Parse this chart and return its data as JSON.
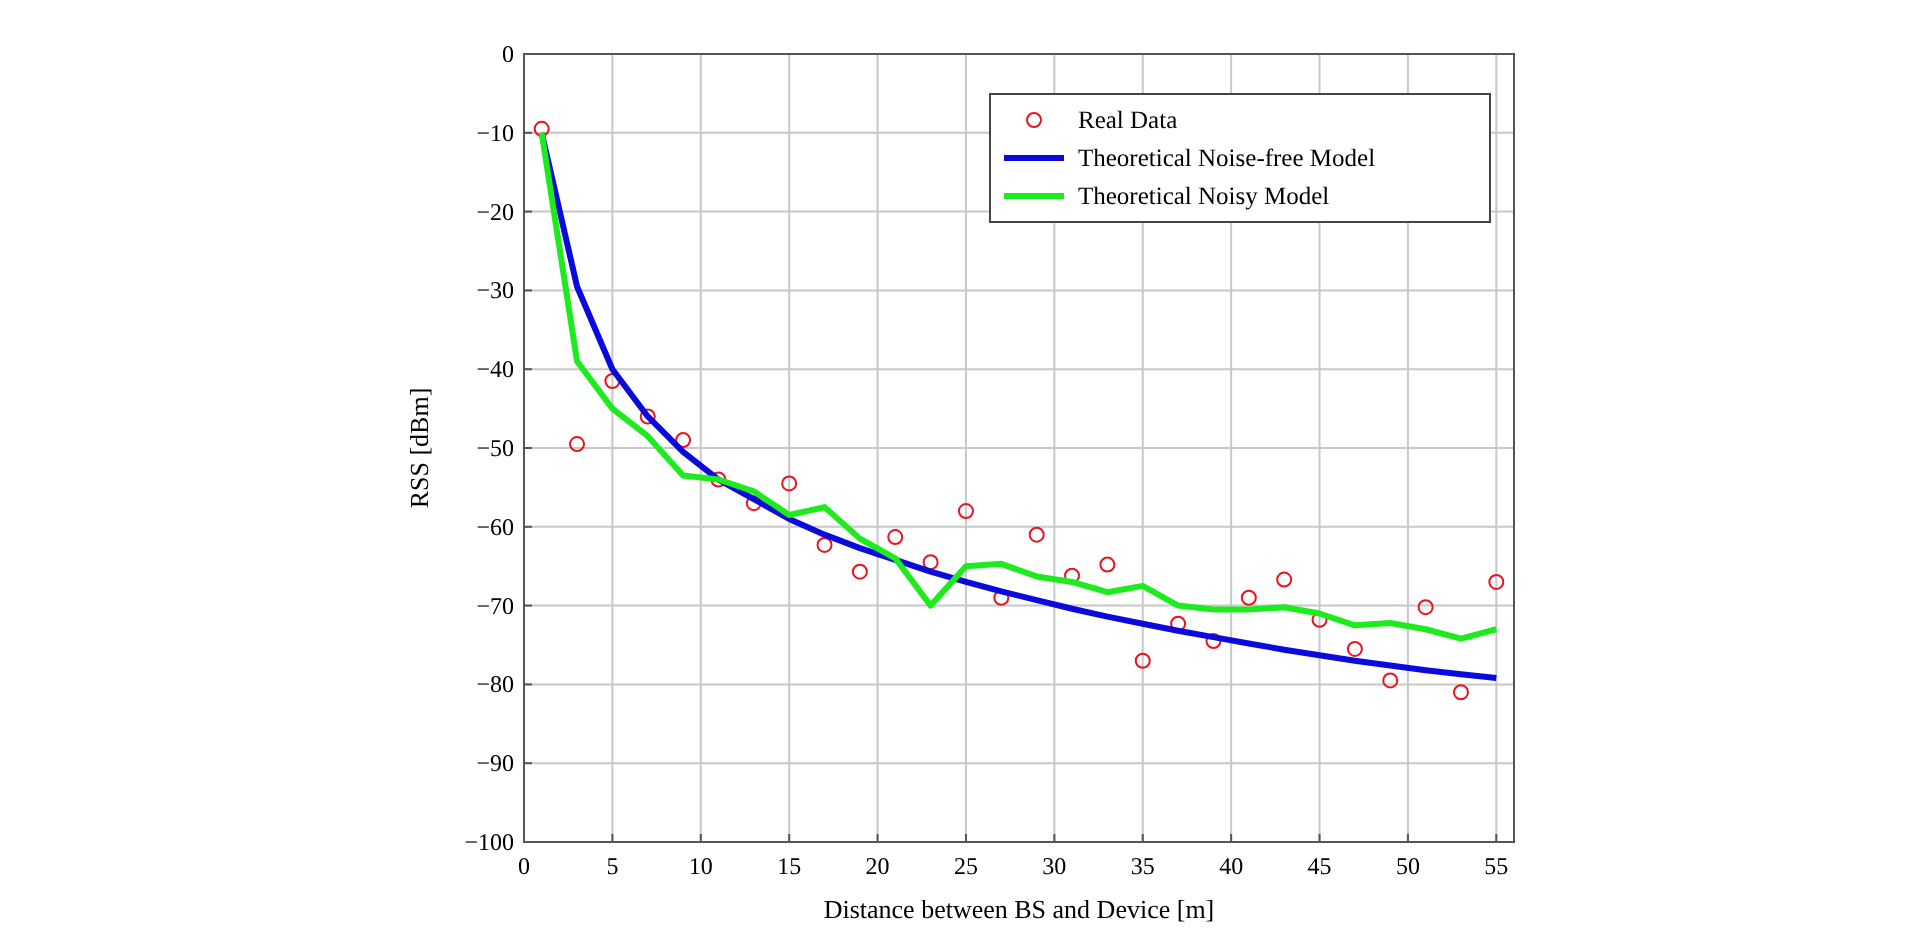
{
  "chart_data": {
    "type": "line",
    "xlabel": "Distance between BS and Device [m]",
    "ylabel": "RSS [dBm]",
    "x": [
      1,
      3,
      5,
      7,
      9,
      11,
      13,
      15,
      17,
      19,
      21,
      23,
      25,
      27,
      29,
      31,
      33,
      35,
      37,
      39,
      41,
      43,
      45,
      47,
      49,
      51,
      53,
      55
    ],
    "series": [
      {
        "name": "Real Data",
        "type": "scatter",
        "marker": "circle",
        "color": "#e8141e",
        "values": [
          -9.5,
          -49.5,
          -41.5,
          -46,
          -49,
          -54,
          -57,
          -54.5,
          -62.3,
          -65.7,
          -61.3,
          -64.5,
          -58,
          -69,
          -61,
          -66.2,
          -64.8,
          -77,
          -72.3,
          -74.5,
          -69,
          -66.7,
          -71.8,
          -75.5,
          -79.5,
          -70.2,
          -81,
          -67
        ]
      },
      {
        "name": "Theoretical Noise-free Model",
        "color": "#0a0adc",
        "values": [
          -10,
          -29.5,
          -40,
          -46,
          -50.5,
          -54,
          -56.5,
          -59,
          -61,
          -62.7,
          -64.2,
          -65.7,
          -67,
          -68.2,
          -69.3,
          -70.4,
          -71.4,
          -72.3,
          -73.2,
          -74,
          -74.8,
          -75.6,
          -76.3,
          -77,
          -77.6,
          -78.2,
          -78.7,
          -79.2
        ]
      },
      {
        "name": "Theoretical Noisy Model",
        "color": "#1eeb1e",
        "values": [
          -10,
          -39,
          -45,
          -48.5,
          -53.5,
          -54,
          -55.5,
          -58.5,
          -57.5,
          -61.5,
          -64,
          -70,
          -65,
          -64.7,
          -66.3,
          -67,
          -68.3,
          -67.5,
          -70,
          -70.5,
          -70.5,
          -70.2,
          -71,
          -72.5,
          -72.2,
          -73,
          -74.2,
          -73
        ]
      }
    ],
    "xlim": [
      0,
      56
    ],
    "xticks": [
      0,
      5,
      10,
      15,
      20,
      25,
      30,
      35,
      40,
      45,
      50,
      55
    ],
    "ylim": [
      -100,
      0
    ],
    "yticks": [
      -100,
      -90,
      -80,
      -70,
      -60,
      -50,
      -40,
      -30,
      -20,
      -10,
      0
    ],
    "grid": true,
    "legend": "top right"
  }
}
